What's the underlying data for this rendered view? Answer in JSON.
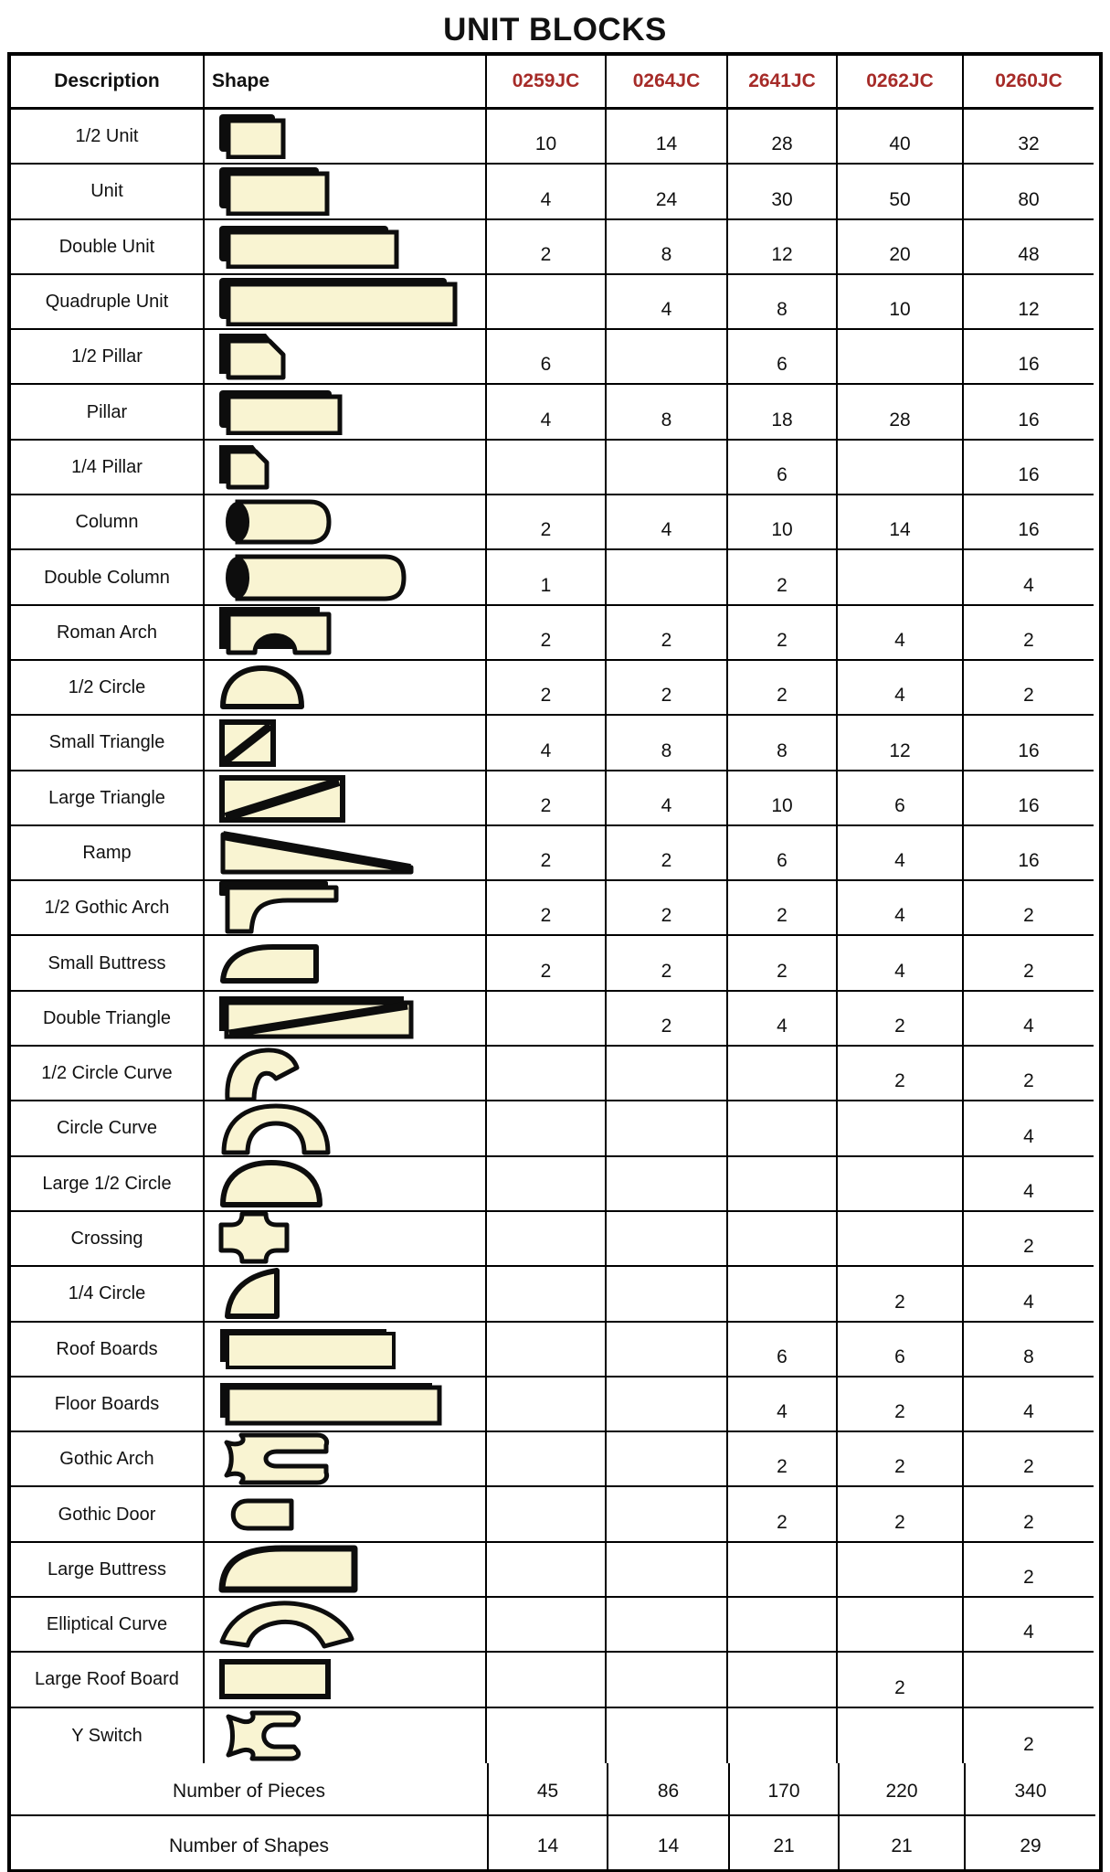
{
  "title": "UNIT BLOCKS",
  "columns": {
    "description": "Description",
    "shape": "Shape",
    "codes": [
      "0259JC",
      "0264JC",
      "2641JC",
      "0262JC",
      "0260JC"
    ]
  },
  "colors": {
    "code_text": "#A62B28",
    "block_fill": "#F9F4D2",
    "block_outline": "#0d0d0d",
    "grid_line": "#000000"
  },
  "rows": [
    {
      "description": "1/2 Unit",
      "shape": "half-unit-block",
      "values": [
        "10",
        "14",
        "28",
        "40",
        "32"
      ]
    },
    {
      "description": "Unit",
      "shape": "unit-block",
      "values": [
        "4",
        "24",
        "30",
        "50",
        "80"
      ]
    },
    {
      "description": "Double Unit",
      "shape": "double-unit-block",
      "values": [
        "2",
        "8",
        "12",
        "20",
        "48"
      ]
    },
    {
      "description": "Quadruple Unit",
      "shape": "quadruple-unit-block",
      "values": [
        "",
        "4",
        "8",
        "10",
        "12"
      ]
    },
    {
      "description": "1/2 Pillar",
      "shape": "half-pillar-block",
      "values": [
        "6",
        "",
        "6",
        "",
        "16"
      ]
    },
    {
      "description": "Pillar",
      "shape": "pillar-block",
      "values": [
        "4",
        "8",
        "18",
        "28",
        "16"
      ]
    },
    {
      "description": "1/4 Pillar",
      "shape": "quarter-pillar-block",
      "values": [
        "",
        "",
        "6",
        "",
        "16"
      ]
    },
    {
      "description": "Column",
      "shape": "column-block",
      "values": [
        "2",
        "4",
        "10",
        "14",
        "16"
      ]
    },
    {
      "description": "Double Column",
      "shape": "double-column-block",
      "values": [
        "1",
        "",
        "2",
        "",
        "4"
      ]
    },
    {
      "description": "Roman Arch",
      "shape": "roman-arch-block",
      "values": [
        "2",
        "2",
        "2",
        "4",
        "2"
      ]
    },
    {
      "description": "1/2 Circle",
      "shape": "half-circle-block",
      "values": [
        "2",
        "2",
        "2",
        "4",
        "2"
      ]
    },
    {
      "description": "Small Triangle",
      "shape": "small-triangle-block",
      "values": [
        "4",
        "8",
        "8",
        "12",
        "16"
      ]
    },
    {
      "description": "Large Triangle",
      "shape": "large-triangle-block",
      "values": [
        "2",
        "4",
        "10",
        "6",
        "16"
      ]
    },
    {
      "description": "Ramp",
      "shape": "ramp-block",
      "values": [
        "2",
        "2",
        "6",
        "4",
        "16"
      ]
    },
    {
      "description": "1/2 Gothic Arch",
      "shape": "half-gothic-arch-block",
      "values": [
        "2",
        "2",
        "2",
        "4",
        "2"
      ]
    },
    {
      "description": "Small Buttress",
      "shape": "small-buttress-block",
      "values": [
        "2",
        "2",
        "2",
        "4",
        "2"
      ]
    },
    {
      "description": "Double Triangle",
      "shape": "double-triangle-block",
      "values": [
        "",
        "2",
        "4",
        "2",
        "4"
      ]
    },
    {
      "description": "1/2 Circle Curve",
      "shape": "half-circle-curve-block",
      "values": [
        "",
        "",
        "",
        "2",
        "2"
      ]
    },
    {
      "description": "Circle Curve",
      "shape": "circle-curve-block",
      "values": [
        "",
        "",
        "",
        "",
        "4"
      ]
    },
    {
      "description": "Large 1/2 Circle",
      "shape": "large-half-circle-block",
      "values": [
        "",
        "",
        "",
        "",
        "4"
      ]
    },
    {
      "description": "Crossing",
      "shape": "crossing-block",
      "values": [
        "",
        "",
        "",
        "",
        "2"
      ]
    },
    {
      "description": "1/4 Circle",
      "shape": "quarter-circle-block",
      "values": [
        "",
        "",
        "",
        "2",
        "4"
      ]
    },
    {
      "description": "Roof Boards",
      "shape": "roof-boards-block",
      "values": [
        "",
        "",
        "6",
        "6",
        "8"
      ]
    },
    {
      "description": "Floor Boards",
      "shape": "floor-boards-block",
      "values": [
        "",
        "",
        "4",
        "2",
        "4"
      ]
    },
    {
      "description": "Gothic Arch",
      "shape": "gothic-arch-block",
      "values": [
        "",
        "",
        "2",
        "2",
        "2"
      ]
    },
    {
      "description": "Gothic Door",
      "shape": "gothic-door-block",
      "values": [
        "",
        "",
        "2",
        "2",
        "2"
      ]
    },
    {
      "description": "Large Buttress",
      "shape": "large-buttress-block",
      "values": [
        "",
        "",
        "",
        "",
        "2"
      ]
    },
    {
      "description": "Elliptical Curve",
      "shape": "elliptical-curve-block",
      "values": [
        "",
        "",
        "",
        "",
        "4"
      ]
    },
    {
      "description": "Large Roof Board",
      "shape": "large-roof-board-block",
      "values": [
        "",
        "",
        "",
        "2",
        ""
      ]
    },
    {
      "description": "Y Switch",
      "shape": "y-switch-block",
      "values": [
        "",
        "",
        "",
        "",
        "2"
      ]
    }
  ],
  "summary": [
    {
      "label": "Number of Pieces",
      "values": [
        "45",
        "86",
        "170",
        "220",
        "340"
      ]
    },
    {
      "label": "Number of Shapes",
      "values": [
        "14",
        "14",
        "21",
        "21",
        "29"
      ]
    }
  ]
}
